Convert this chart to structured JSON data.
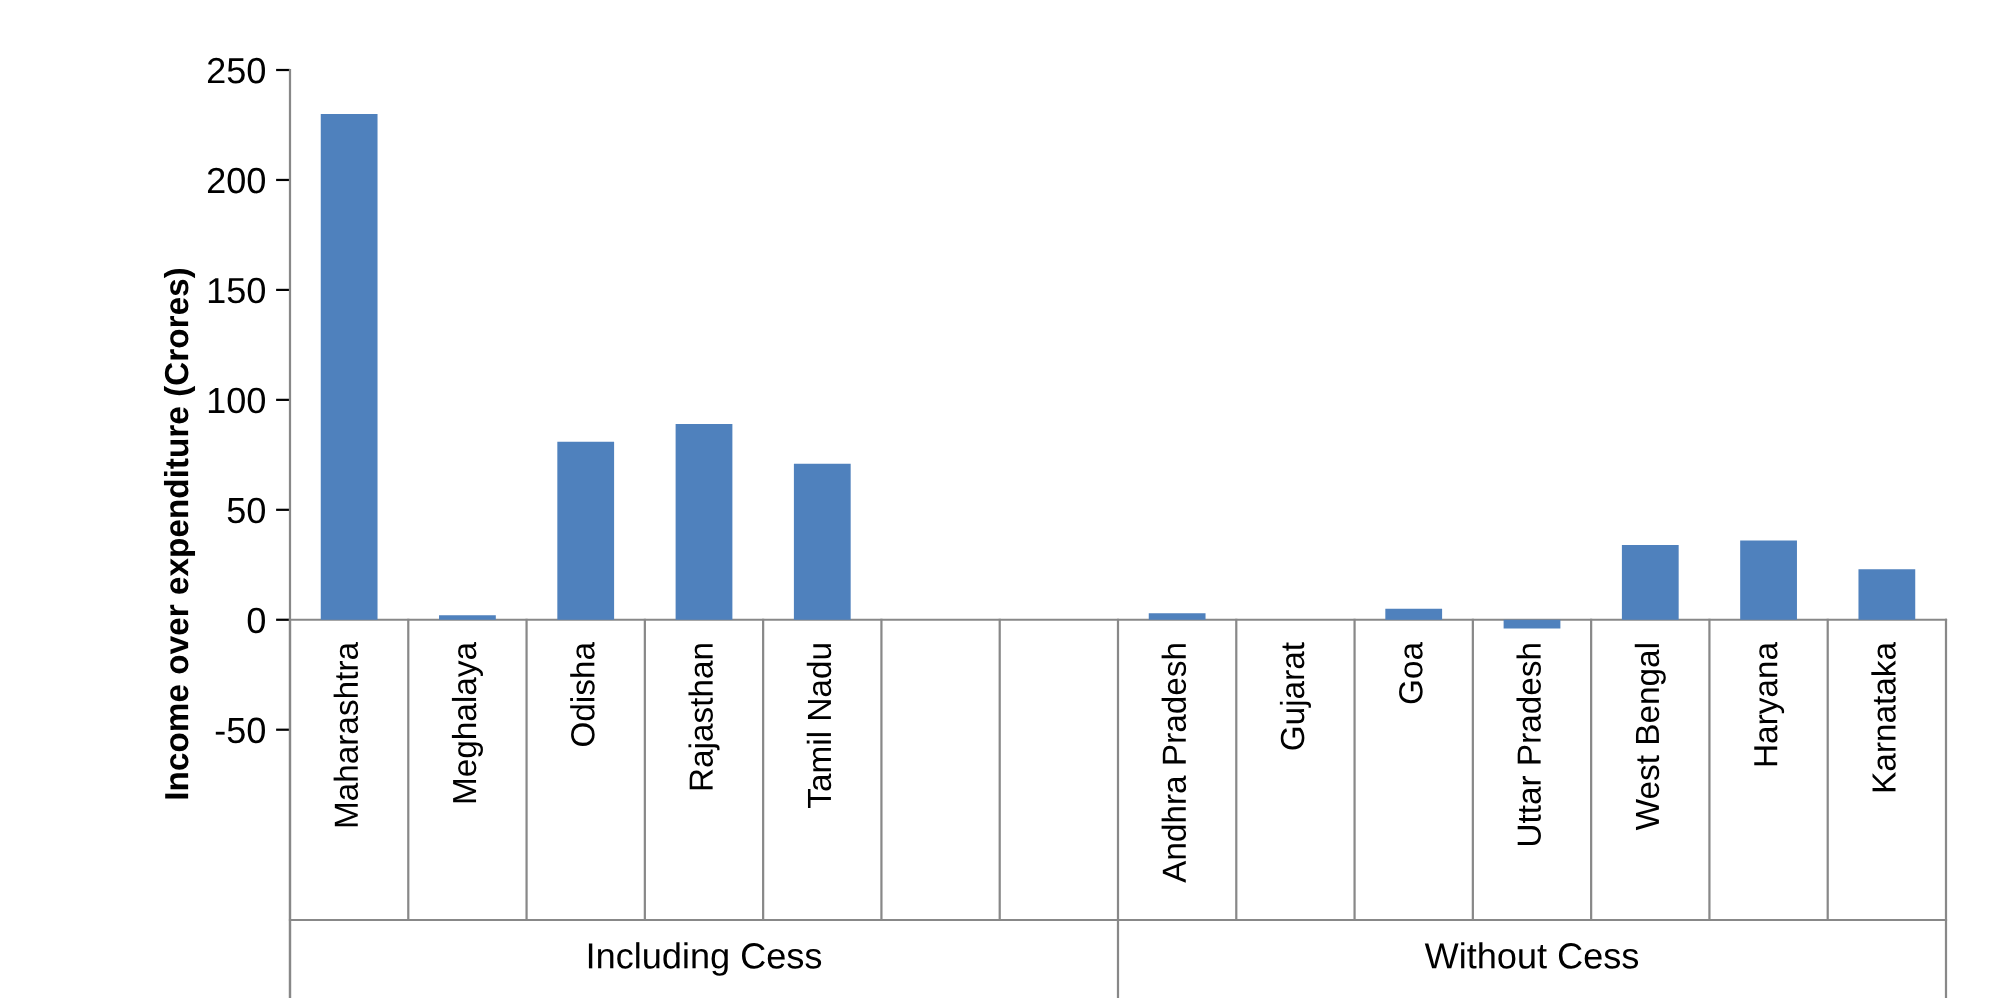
{
  "chart_data": {
    "type": "bar",
    "ylabel": "Income over expenditure (Crores)",
    "categories": [
      "Maharashtra",
      "Meghalaya",
      "Odisha",
      "Rajasthan",
      "Tamil Nadu",
      null,
      null,
      "Andhra Pradesh",
      "Gujarat",
      "Goa",
      "Uttar Pradesh",
      "West Bengal",
      "Haryana",
      "Karnataka"
    ],
    "values": [
      230,
      2,
      81,
      89,
      71,
      null,
      null,
      3,
      0,
      5,
      -4,
      34,
      36,
      23
    ],
    "color": "#4f81bd",
    "ylim": [
      -172,
      250
    ],
    "yticks": [
      -50,
      0,
      50,
      100,
      150,
      200,
      250
    ],
    "annotations": [
      "Including Cess",
      "Without Cess"
    ]
  }
}
